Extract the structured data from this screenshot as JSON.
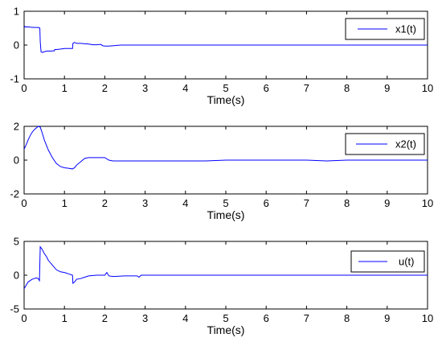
{
  "chart_data": [
    {
      "type": "line",
      "xlabel": "Time(s)",
      "ylabel": "",
      "xlim": [
        0,
        10
      ],
      "ylim": [
        -1,
        1
      ],
      "xticks": [
        "0",
        "1",
        "2",
        "3",
        "4",
        "5",
        "6",
        "7",
        "8",
        "9",
        "10"
      ],
      "yticks": [
        "-1",
        "0",
        "1"
      ],
      "legend_position": "top-right",
      "series": [
        {
          "name": "x1(t)",
          "color": "#0000ff",
          "x": [
            0,
            0.02,
            0.05,
            0.08,
            0.15,
            0.25,
            0.35,
            0.39,
            0.4,
            0.42,
            0.45,
            0.5,
            0.55,
            0.65,
            0.75,
            0.76,
            0.8,
            0.9,
            1.0,
            1.1,
            1.2,
            1.21,
            1.25,
            1.3,
            1.4,
            1.5,
            1.6,
            1.7,
            1.8,
            1.9,
            1.95,
            2.0,
            2.1,
            2.2,
            2.3,
            2.4,
            2.5,
            2.7,
            3.0,
            4.0,
            5.0,
            6.0,
            7.0,
            8.0,
            9.0,
            10.0
          ],
          "y": [
            0.52,
            0.55,
            0.53,
            0.54,
            0.53,
            0.52,
            0.52,
            0.5,
            0.1,
            -0.2,
            -0.22,
            -0.2,
            -0.18,
            -0.18,
            -0.17,
            -0.13,
            -0.13,
            -0.12,
            -0.1,
            -0.1,
            -0.1,
            0.05,
            0.08,
            0.05,
            0.05,
            0.04,
            0.03,
            0.01,
            0.01,
            0.02,
            -0.02,
            -0.03,
            -0.03,
            -0.02,
            -0.01,
            0.0,
            0.0,
            0.0,
            0.0,
            0.0,
            0.0,
            0.0,
            0.0,
            0.0,
            0.0,
            0.0
          ]
        }
      ]
    },
    {
      "type": "line",
      "xlabel": "Time(s)",
      "ylabel": "",
      "xlim": [
        0,
        10
      ],
      "ylim": [
        -2,
        2
      ],
      "xticks": [
        "0",
        "1",
        "2",
        "3",
        "4",
        "5",
        "6",
        "7",
        "8",
        "9",
        "10"
      ],
      "yticks": [
        "-2",
        "0",
        "2"
      ],
      "legend_position": "top-right",
      "series": [
        {
          "name": "x2(t)",
          "color": "#0000ff",
          "x": [
            0,
            0.05,
            0.1,
            0.15,
            0.2,
            0.25,
            0.3,
            0.35,
            0.4,
            0.45,
            0.5,
            0.6,
            0.7,
            0.8,
            0.9,
            1.0,
            1.1,
            1.2,
            1.25,
            1.3,
            1.4,
            1.5,
            1.6,
            1.8,
            2.0,
            2.1,
            2.2,
            2.5,
            3.0,
            3.5,
            4.0,
            4.5,
            5.0,
            5.5,
            6.0,
            6.5,
            7.0,
            7.5,
            8.0,
            8.5,
            9.0,
            9.5,
            10.0
          ],
          "y": [
            0.65,
            0.9,
            1.2,
            1.45,
            1.65,
            1.8,
            1.9,
            2.0,
            1.95,
            1.6,
            1.2,
            0.6,
            0.15,
            -0.2,
            -0.38,
            -0.45,
            -0.48,
            -0.52,
            -0.45,
            -0.3,
            -0.1,
            0.1,
            0.15,
            0.15,
            0.15,
            0.0,
            -0.05,
            -0.05,
            -0.05,
            -0.05,
            -0.05,
            -0.05,
            0.0,
            0.0,
            0.0,
            0.0,
            0.0,
            -0.05,
            0.0,
            0.0,
            0.0,
            0.0,
            0.0
          ]
        }
      ]
    },
    {
      "type": "line",
      "xlabel": "Time(s)",
      "ylabel": "",
      "xlim": [
        0,
        10
      ],
      "ylim": [
        -5,
        5
      ],
      "xticks": [
        "0",
        "1",
        "2",
        "3",
        "4",
        "5",
        "6",
        "7",
        "8",
        "9",
        "10"
      ],
      "yticks": [
        "-5",
        "0",
        "5"
      ],
      "legend_position": "top-right",
      "series": [
        {
          "name": "u(t)",
          "color": "#0000ff",
          "x": [
            0,
            0.05,
            0.1,
            0.15,
            0.2,
            0.25,
            0.3,
            0.35,
            0.38,
            0.4,
            0.45,
            0.5,
            0.55,
            0.6,
            0.7,
            0.8,
            0.9,
            1.0,
            1.1,
            1.2,
            1.21,
            1.25,
            1.3,
            1.4,
            1.5,
            1.6,
            1.8,
            2.0,
            2.05,
            2.1,
            2.2,
            2.5,
            2.8,
            2.85,
            2.9,
            3.0,
            4.0,
            5.0,
            6.0,
            7.0,
            8.0,
            9.0,
            10.0
          ],
          "y": [
            -2.0,
            -1.5,
            -1.0,
            -0.8,
            -0.6,
            -0.5,
            -0.4,
            -0.5,
            -0.8,
            4.2,
            3.8,
            3.2,
            2.8,
            2.2,
            1.5,
            0.8,
            0.5,
            0.4,
            0.2,
            0.0,
            -1.2,
            -1.0,
            -0.6,
            -0.5,
            -0.3,
            -0.1,
            0.0,
            0.0,
            0.4,
            -0.1,
            -0.2,
            -0.1,
            -0.1,
            -0.3,
            0.0,
            0.0,
            0.0,
            0.0,
            0.0,
            0.0,
            0.0,
            0.0,
            0.0
          ]
        }
      ]
    }
  ]
}
